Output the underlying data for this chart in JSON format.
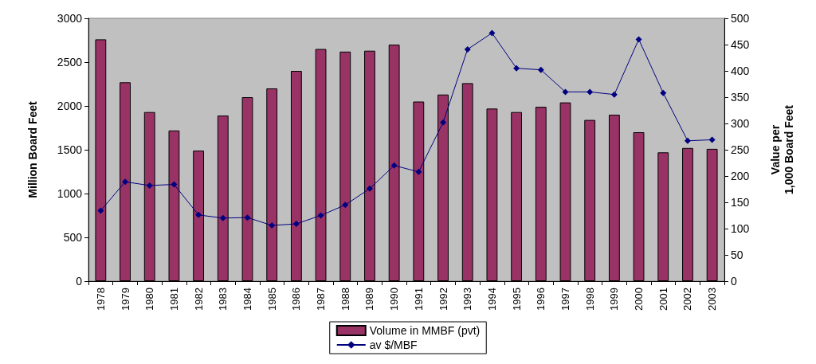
{
  "chart_data": {
    "type": "bar",
    "ylabel": "Million Board Feet",
    "y2label": "Value per\n1,000 Board Feet",
    "categories": [
      "1978",
      "1979",
      "1980",
      "1981",
      "1982",
      "1983",
      "1984",
      "1985",
      "1986",
      "1987",
      "1988",
      "1989",
      "1990",
      "1991",
      "1992",
      "1993",
      "1994",
      "1995",
      "1996",
      "1997",
      "1998",
      "1999",
      "2000",
      "2001",
      "2002",
      "2003"
    ],
    "series": [
      {
        "name": "Volume in MMBF (pvt)",
        "color": "#993366",
        "values": [
          2760,
          2270,
          1930,
          1720,
          1490,
          1890,
          2100,
          2200,
          2400,
          2650,
          2620,
          2630,
          2700,
          2050,
          2130,
          2260,
          1970,
          1930,
          1990,
          2040,
          1840,
          1900,
          1700,
          1470,
          1520,
          1510
        ]
      },
      {
        "name": "av $/MBF",
        "type": "line",
        "axis": "y2",
        "color": "#000080",
        "values": [
          134,
          189,
          182,
          184,
          126,
          120,
          121,
          106,
          109,
          125,
          145,
          176,
          220,
          208,
          302,
          441,
          472,
          405,
          402,
          360,
          360,
          355,
          460,
          358,
          267,
          269
        ]
      }
    ],
    "ylim": [
      0,
      3000
    ],
    "yticks": [
      0,
      500,
      1000,
      1500,
      2000,
      2500,
      3000
    ],
    "y2lim": [
      0,
      500
    ],
    "y2ticks": [
      0,
      50,
      100,
      150,
      200,
      250,
      300,
      350,
      400,
      450,
      500
    ],
    "grid": false,
    "legend": "bottom",
    "marker": "diamond",
    "line_style": "solid"
  }
}
